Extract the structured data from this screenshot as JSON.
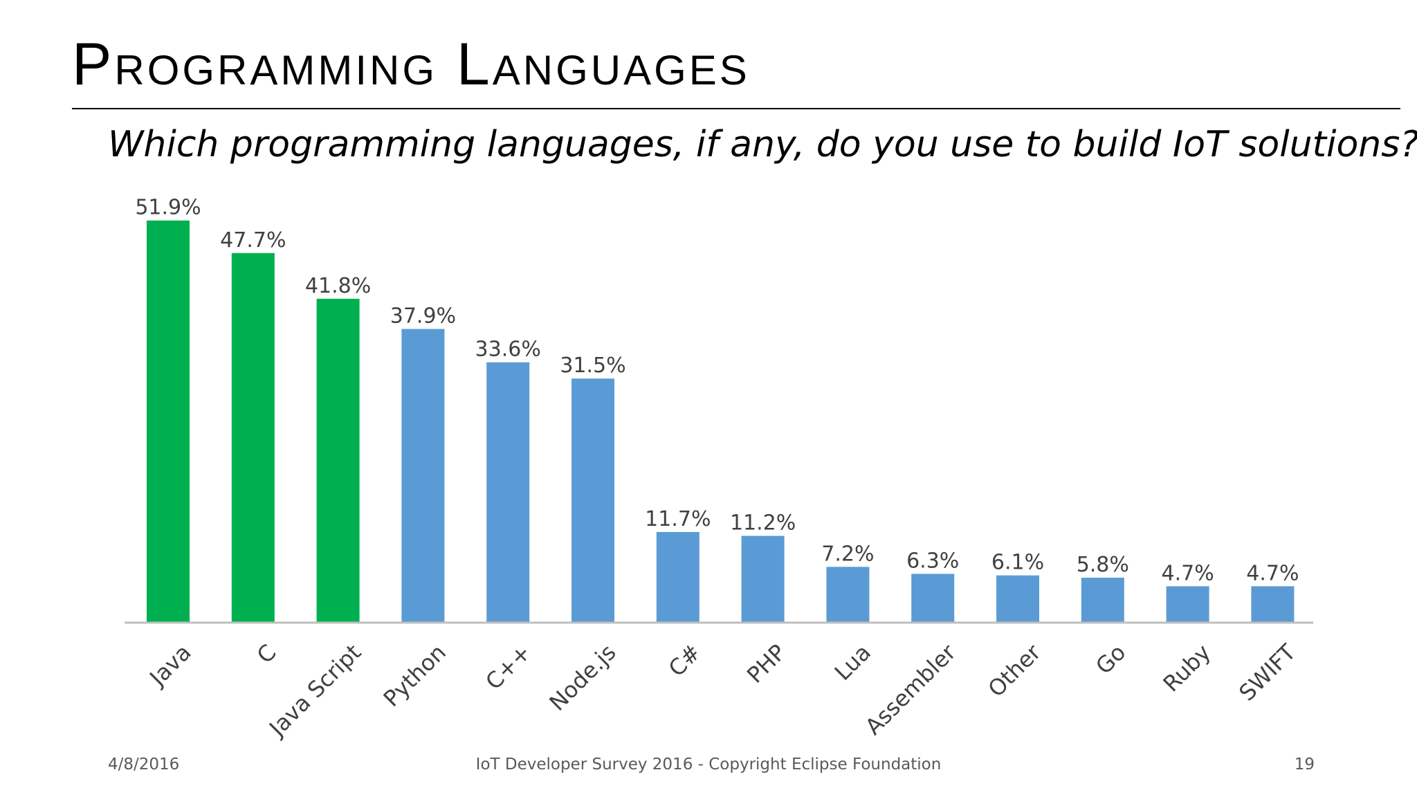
{
  "slide": {
    "title": "Programming Languages",
    "question": "Which programming languages, if any, do you use to build IoT solutions?"
  },
  "footer": {
    "date": "4/8/2016",
    "center": "IoT Developer Survey 2016 - Copyright Eclipse Foundation",
    "page": "19"
  },
  "colors": {
    "highlight": "#00B050",
    "default": "#5B9BD5",
    "axis": "#BFBFBF"
  },
  "chart_data": {
    "type": "bar",
    "title": "",
    "xlabel": "",
    "ylabel": "",
    "ylim": [
      0,
      55
    ],
    "grid": false,
    "legend": "none",
    "categories": [
      "Java",
      "C",
      "Java Script",
      "Python",
      "C++",
      "Node.js",
      "C#",
      "PHP",
      "Lua",
      "Assembler",
      "Other",
      "Go",
      "Ruby",
      "SWIFT"
    ],
    "values": [
      51.9,
      47.7,
      41.8,
      37.9,
      33.6,
      31.5,
      11.7,
      11.2,
      7.2,
      6.3,
      6.1,
      5.8,
      4.7,
      4.7
    ],
    "data_labels": [
      "51.9%",
      "47.7%",
      "41.8%",
      "37.9%",
      "33.6%",
      "31.5%",
      "11.7%",
      "11.2%",
      "7.2%",
      "6.3%",
      "6.1%",
      "5.8%",
      "4.7%",
      "4.7%"
    ],
    "highlighted": [
      "Java",
      "C",
      "Java Script"
    ]
  }
}
